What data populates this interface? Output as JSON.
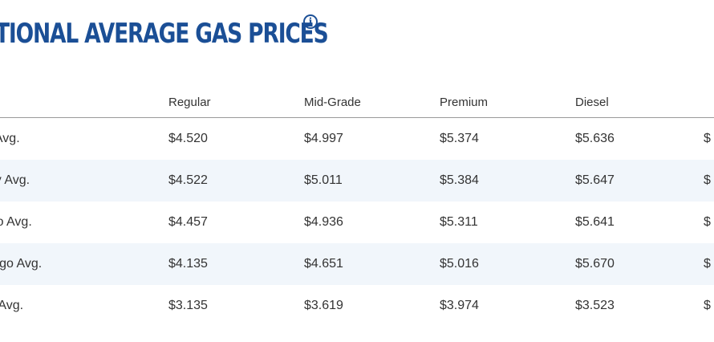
{
  "title": "TIONAL AVERAGE GAS PRICES",
  "info_icon_glyph": "i",
  "brand_color": "#1b4f96",
  "row_shade_color": "#f1f6fb",
  "columns": [
    "",
    "Regular",
    "Mid-Grade",
    "Premium",
    "Diesel",
    ""
  ],
  "rows": [
    {
      "label": "nt Avg.",
      "values": [
        "$4.520",
        "$4.997",
        "$5.374",
        "$5.636",
        "$"
      ]
    },
    {
      "label": "day Avg.",
      "values": [
        "$4.522",
        "$5.011",
        "$5.384",
        "$5.647",
        "$"
      ]
    },
    {
      "label": "Ago Avg.",
      "values": [
        "$4.457",
        "$4.936",
        "$5.311",
        "$5.641",
        "$"
      ]
    },
    {
      "label": "n Ago Avg.",
      "values": [
        "$4.135",
        "$4.651",
        "$5.016",
        "$5.670",
        "$"
      ]
    },
    {
      "label": "go Avg.",
      "values": [
        "$3.135",
        "$3.619",
        "$3.974",
        "$3.523",
        "$"
      ]
    }
  ]
}
